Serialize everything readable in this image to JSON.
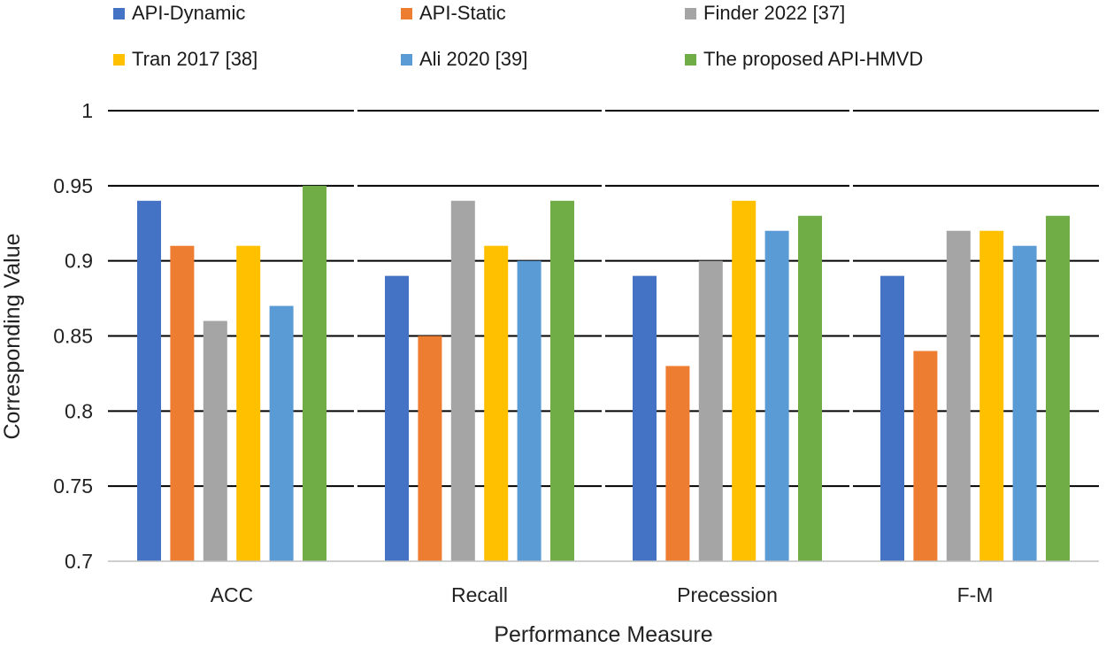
{
  "chart_data": {
    "type": "bar",
    "title": "",
    "xlabel": "Performance Measure",
    "ylabel": "Corresponding Value",
    "ylim": [
      0.7,
      1.0
    ],
    "yticks": [
      0.7,
      0.75,
      0.8,
      0.85,
      0.9,
      0.95,
      1
    ],
    "ytick_labels": [
      "0.7",
      "0.75",
      "0.8",
      "0.85",
      "0.9",
      "0.95",
      "1"
    ],
    "grid": true,
    "legend_position": "top",
    "categories": [
      "ACC",
      "Recall",
      "Precession",
      "F-M"
    ],
    "series": [
      {
        "name": "API-Dynamic",
        "color": "#4472C4",
        "values": [
          0.94,
          0.89,
          0.89,
          0.89
        ]
      },
      {
        "name": "API-Static",
        "color": "#ED7D31",
        "values": [
          0.91,
          0.85,
          0.83,
          0.84
        ]
      },
      {
        "name": "Finder 2022 [37]",
        "color": "#A5A5A5",
        "values": [
          0.86,
          0.94,
          0.9,
          0.92
        ]
      },
      {
        "name": "Tran 2017 [38]",
        "color": "#FFC000",
        "values": [
          0.91,
          0.91,
          0.94,
          0.92
        ]
      },
      {
        "name": "Ali 2020 [39]",
        "color": "#5B9BD5",
        "values": [
          0.87,
          0.9,
          0.92,
          0.91
        ]
      },
      {
        "name": "The proposed API-HMVD",
        "color": "#70AD47",
        "values": [
          0.95,
          0.94,
          0.93,
          0.93
        ]
      }
    ]
  }
}
